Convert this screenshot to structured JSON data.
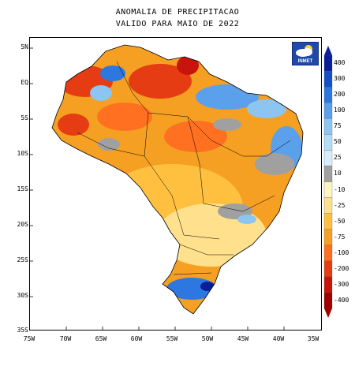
{
  "title": {
    "line1": "ANOMALIA DE PRECIPITACAO",
    "line2": "VALIDO PARA MAIO DE 2022"
  },
  "map": {
    "y_ticks": [
      "5N",
      "EQ",
      "5S",
      "10S",
      "15S",
      "20S",
      "25S",
      "30S",
      "35S"
    ],
    "x_ticks": [
      "75W",
      "70W",
      "65W",
      "60W",
      "55W",
      "50W",
      "45W",
      "40W",
      "35W"
    ]
  },
  "logo": {
    "text": "INMET",
    "icon": "cloud-sun-icon"
  },
  "legend": {
    "labels": [
      "400",
      "300",
      "200",
      "100",
      "75",
      "50",
      "25",
      "10",
      "-10",
      "-25",
      "-50",
      "-75",
      "-100",
      "-200",
      "-300",
      "-400"
    ],
    "colors": [
      "#0a1e9a",
      "#1450c8",
      "#2c78e0",
      "#5aa0ea",
      "#8cc4f2",
      "#b4dcf6",
      "#d8ecfa",
      "#a0a0a0",
      "#fff5c0",
      "#ffe08c",
      "#ffc040",
      "#f5a023",
      "#ff7020",
      "#e63c14",
      "#c8140a",
      "#a00000"
    ]
  },
  "colors": {
    "orange": "#f5a023",
    "light_orange": "#ffc040",
    "red": "#e63c14",
    "dark_red": "#c8140a",
    "blue": "#2c78e0",
    "light_blue": "#8cc4f2",
    "gray": "#a0a0a0",
    "yellow": "#ffe08c"
  }
}
